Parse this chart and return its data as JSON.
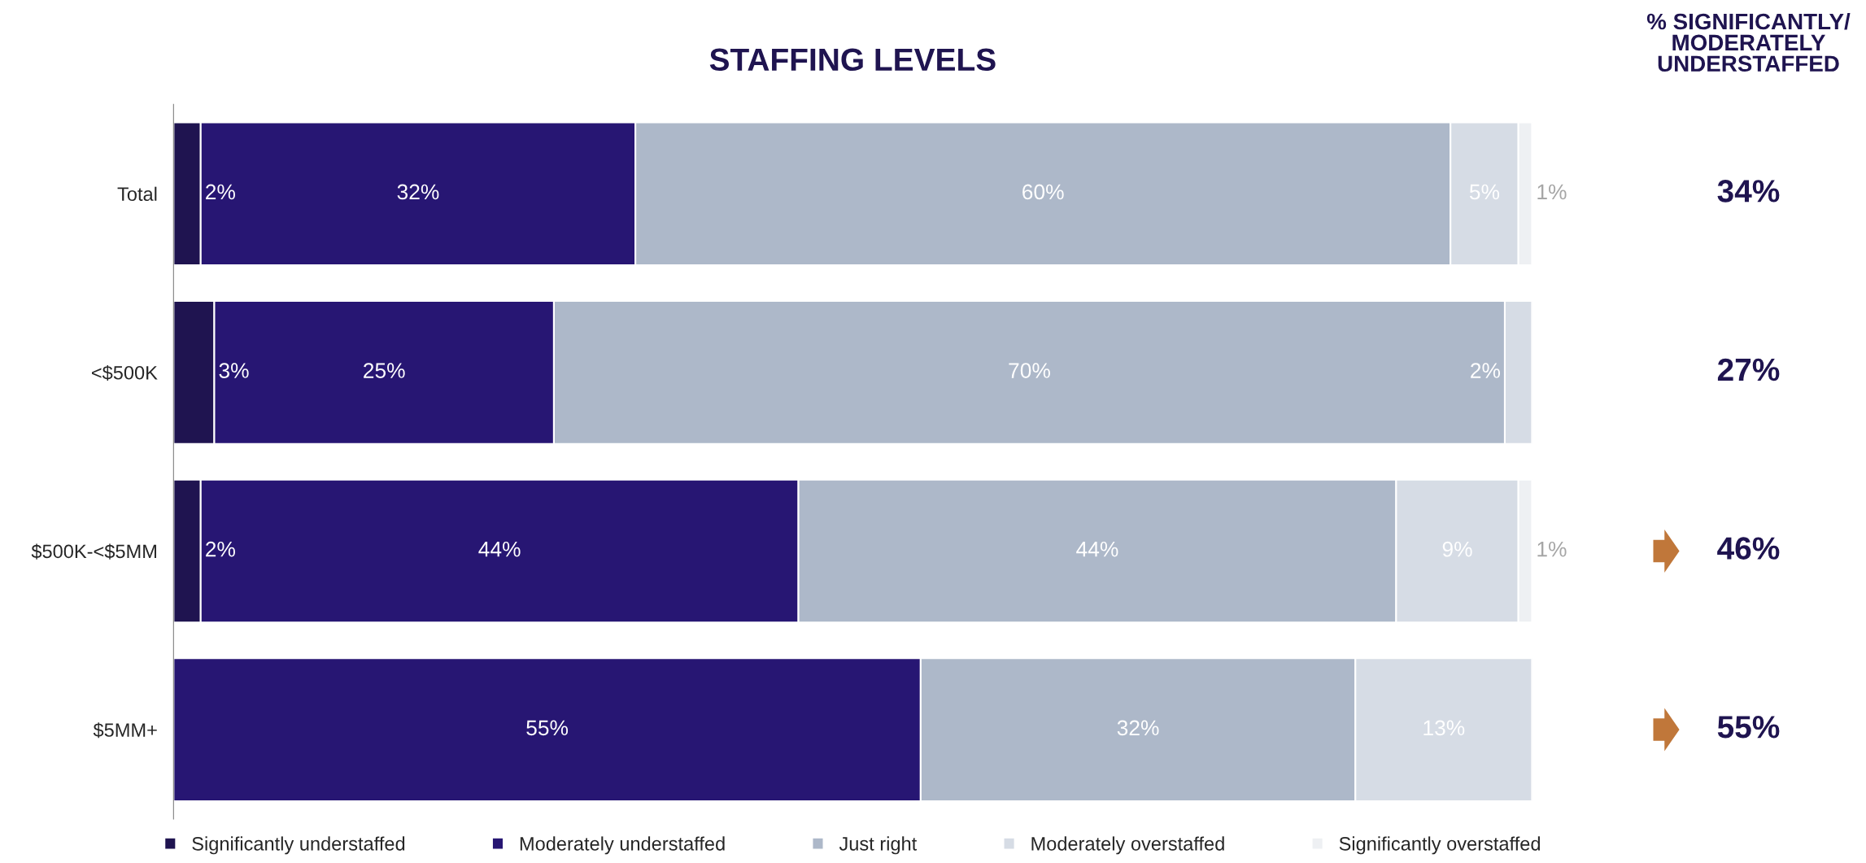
{
  "chart_data": {
    "type": "bar",
    "orientation": "horizontal",
    "stacked": true,
    "title": "STAFFING LEVELS",
    "categories": [
      "Total",
      "<$500K",
      "$500K-<$5MM",
      "$5MM+"
    ],
    "series": [
      {
        "name": "Significantly understaffed",
        "color": "#1f1450",
        "values": [
          2,
          3,
          2,
          0
        ],
        "value_labels": [
          "2%",
          "3%",
          "2%",
          null
        ]
      },
      {
        "name": "Moderately understaffed",
        "color": "#271673",
        "values": [
          32,
          25,
          44,
          55
        ],
        "value_labels": [
          "32%",
          "25%",
          "44%",
          "55%"
        ]
      },
      {
        "name": "Just right",
        "color": "#adb8c9",
        "values": [
          60,
          70,
          44,
          32
        ],
        "value_labels": [
          "60%",
          "70%",
          "44%",
          "32%"
        ]
      },
      {
        "name": "Moderately overstaffed",
        "color": "#d6dce5",
        "values": [
          5,
          2,
          9,
          13
        ],
        "value_labels": [
          "5%",
          "2%",
          "9%",
          "13%"
        ]
      },
      {
        "name": "Significantly overstaffed",
        "color": "#eef0f3",
        "values": [
          1,
          0,
          1,
          0
        ],
        "value_labels": [
          "1%",
          null,
          "1%",
          null
        ]
      }
    ],
    "annotations": [
      "% SIGNIFICANTLY/\nMODERATELY\nUNDERSTAFFED",
      "34%",
      "27%",
      "46%",
      "55%"
    ],
    "legend": "bottom",
    "tick_labels": "y",
    "grid": false
  }
}
